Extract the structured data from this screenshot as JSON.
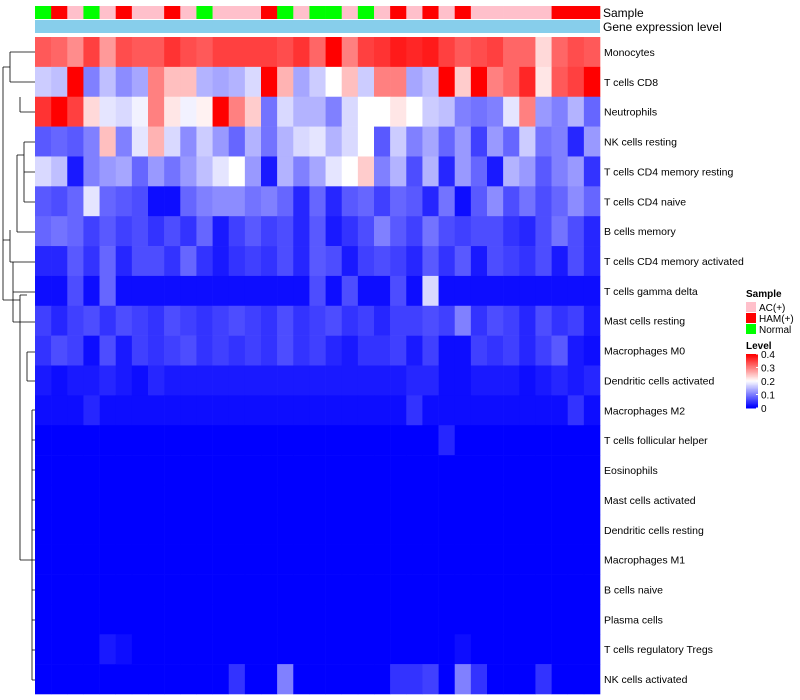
{
  "chart_data": {
    "type": "heatmap",
    "title": "",
    "annotation_tracks": [
      {
        "name": "Sample"
      },
      {
        "name": "Gene expression level"
      }
    ],
    "rows": [
      "Monocytes",
      "T cells CD8",
      "Neutrophils",
      "NK cells resting",
      "T cells CD4 memory resting",
      "T cells CD4 naive",
      "B cells memory",
      "T cells CD4 memory activated",
      "T cells gamma delta",
      "Mast cells resting",
      "Macrophages M0",
      "Dendritic cells activated",
      "Macrophages M2",
      "T cells follicular helper",
      "Eosinophils",
      "Mast cells activated",
      "Dendritic cells resting",
      "Macrophages M1",
      "B cells naive",
      "Plasma cells",
      "T cells regulatory  Tregs",
      "NK cells activated"
    ],
    "sample_groups": [
      "Normal",
      "HAM(+)",
      "AC(+)",
      "Normal",
      "AC(+)",
      "HAM(+)",
      "AC(+)",
      "AC(+)",
      "HAM(+)",
      "AC(+)",
      "Normal",
      "AC(+)",
      "AC(+)",
      "AC(+)",
      "HAM(+)",
      "Normal",
      "AC(+)",
      "Normal",
      "Normal",
      "AC(+)",
      "Normal",
      "AC(+)",
      "HAM(+)",
      "AC(+)",
      "HAM(+)",
      "AC(+)",
      "HAM(+)",
      "AC(+)",
      "AC(+)",
      "AC(+)",
      "AC(+)",
      "AC(+)",
      "HAM(+)",
      "HAM(+)",
      "HAM(+)"
    ],
    "values": [
      [
        0.33,
        0.32,
        0.29,
        0.35,
        0.28,
        0.34,
        0.33,
        0.33,
        0.36,
        0.34,
        0.33,
        0.35,
        0.35,
        0.35,
        0.35,
        0.34,
        0.36,
        0.32,
        0.4,
        0.3,
        0.35,
        0.36,
        0.38,
        0.37,
        0.38,
        0.35,
        0.33,
        0.34,
        0.35,
        0.32,
        0.32,
        0.23,
        0.32,
        0.34,
        0.33
      ],
      [
        0.16,
        0.15,
        0.4,
        0.1,
        0.15,
        0.11,
        0.13,
        0.3,
        0.25,
        0.25,
        0.14,
        0.13,
        0.14,
        0.17,
        0.4,
        0.26,
        0.13,
        0.16,
        0.2,
        0.25,
        0.16,
        0.3,
        0.3,
        0.13,
        0.15,
        0.4,
        0.24,
        0.4,
        0.3,
        0.32,
        0.37,
        0.22,
        0.33,
        0.35,
        0.4
      ],
      [
        0.36,
        0.4,
        0.35,
        0.23,
        0.18,
        0.17,
        0.19,
        0.3,
        0.22,
        0.19,
        0.21,
        0.4,
        0.3,
        0.24,
        0.09,
        0.17,
        0.14,
        0.14,
        0.1,
        0.17,
        0.2,
        0.2,
        0.22,
        0.2,
        0.16,
        0.15,
        0.1,
        0.09,
        0.1,
        0.18,
        0.3,
        0.12,
        0.1,
        0.14,
        0.08
      ],
      [
        0.07,
        0.08,
        0.07,
        0.1,
        0.25,
        0.1,
        0.18,
        0.26,
        0.17,
        0.11,
        0.16,
        0.12,
        0.08,
        0.14,
        0.09,
        0.14,
        0.17,
        0.18,
        0.14,
        0.17,
        0.2,
        0.07,
        0.16,
        0.1,
        0.13,
        0.08,
        0.12,
        0.05,
        0.12,
        0.08,
        0.16,
        0.09,
        0.1,
        0.03,
        0.12
      ],
      [
        0.17,
        0.15,
        0.02,
        0.1,
        0.12,
        0.13,
        0.08,
        0.12,
        0.09,
        0.12,
        0.15,
        0.18,
        0.2,
        0.12,
        0.02,
        0.14,
        0.1,
        0.13,
        0.18,
        0.2,
        0.24,
        0.1,
        0.14,
        0.06,
        0.14,
        0.03,
        0.12,
        0.08,
        0.02,
        0.14,
        0.12,
        0.07,
        0.1,
        0.12,
        0.04
      ],
      [
        0.07,
        0.06,
        0.08,
        0.18,
        0.08,
        0.07,
        0.06,
        0.01,
        0.01,
        0.08,
        0.1,
        0.11,
        0.11,
        0.09,
        0.1,
        0.08,
        0.03,
        0.08,
        0.03,
        0.07,
        0.08,
        0.05,
        0.08,
        0.07,
        0.03,
        0.09,
        0.01,
        0.07,
        0.11,
        0.06,
        0.09,
        0.06,
        0.08,
        0.11,
        0.08
      ],
      [
        0.08,
        0.09,
        0.08,
        0.05,
        0.07,
        0.05,
        0.06,
        0.04,
        0.06,
        0.04,
        0.08,
        0.02,
        0.05,
        0.07,
        0.05,
        0.06,
        0.03,
        0.07,
        0.02,
        0.04,
        0.06,
        0.1,
        0.07,
        0.05,
        0.09,
        0.06,
        0.05,
        0.06,
        0.06,
        0.04,
        0.03,
        0.06,
        0.09,
        0.06,
        0.03
      ],
      [
        0.03,
        0.03,
        0.07,
        0.04,
        0.08,
        0.03,
        0.06,
        0.06,
        0.04,
        0.08,
        0.04,
        0.02,
        0.04,
        0.05,
        0.04,
        0.06,
        0.03,
        0.07,
        0.06,
        0.02,
        0.05,
        0.06,
        0.05,
        0.03,
        0.07,
        0.04,
        0.07,
        0.02,
        0.06,
        0.05,
        0.04,
        0.06,
        0.02,
        0.06,
        0.03
      ],
      [
        0.01,
        0.01,
        0.06,
        0.01,
        0.08,
        0.01,
        0.01,
        0.01,
        0.01,
        0.01,
        0.01,
        0.01,
        0.01,
        0.01,
        0.01,
        0.01,
        0.01,
        0.06,
        0.01,
        0.06,
        0.01,
        0.01,
        0.06,
        0.01,
        0.17,
        0.01,
        0.01,
        0.01,
        0.01,
        0.01,
        0.01,
        0.01,
        0.01,
        0.01,
        0.01
      ],
      [
        0.05,
        0.03,
        0.05,
        0.06,
        0.04,
        0.06,
        0.05,
        0.04,
        0.06,
        0.05,
        0.04,
        0.05,
        0.06,
        0.05,
        0.04,
        0.06,
        0.04,
        0.05,
        0.06,
        0.04,
        0.05,
        0.03,
        0.05,
        0.05,
        0.06,
        0.05,
        0.1,
        0.04,
        0.06,
        0.05,
        0.03,
        0.06,
        0.04,
        0.05,
        0.02
      ],
      [
        0.04,
        0.06,
        0.05,
        0.01,
        0.06,
        0.02,
        0.05,
        0.04,
        0.05,
        0.06,
        0.04,
        0.05,
        0.04,
        0.05,
        0.04,
        0.06,
        0.04,
        0.05,
        0.03,
        0.02,
        0.04,
        0.04,
        0.05,
        0.02,
        0.05,
        0.01,
        0.01,
        0.05,
        0.04,
        0.05,
        0.03,
        0.05,
        0.07,
        0.02,
        0.01
      ],
      [
        0.02,
        0.01,
        0.02,
        0.02,
        0.03,
        0.02,
        0.01,
        0.03,
        0.02,
        0.02,
        0.02,
        0.02,
        0.02,
        0.02,
        0.02,
        0.02,
        0.02,
        0.02,
        0.02,
        0.02,
        0.02,
        0.02,
        0.02,
        0.03,
        0.03,
        0.01,
        0.01,
        0.02,
        0.02,
        0.02,
        0.01,
        0.02,
        0.03,
        0.02,
        0.03
      ],
      [
        0.01,
        0.01,
        0.01,
        0.03,
        0.01,
        0.01,
        0.01,
        0.01,
        0.01,
        0.01,
        0.01,
        0.01,
        0.01,
        0.01,
        0.01,
        0.01,
        0.01,
        0.01,
        0.01,
        0.01,
        0.01,
        0.01,
        0.01,
        0.04,
        0.01,
        0.01,
        0.01,
        0.01,
        0.01,
        0.01,
        0.01,
        0.01,
        0.01,
        0.04,
        0.01
      ],
      [
        0.0,
        0.0,
        0.0,
        0.0,
        0.0,
        0.0,
        0.0,
        0.0,
        0.0,
        0.0,
        0.0,
        0.0,
        0.0,
        0.0,
        0.0,
        0.0,
        0.0,
        0.0,
        0.0,
        0.0,
        0.0,
        0.0,
        0.0,
        0.0,
        0.0,
        0.03,
        0.0,
        0.0,
        0.0,
        0.0,
        0.0,
        0.0,
        0.0,
        0.0,
        0.0
      ],
      [
        0.0,
        0.0,
        0.0,
        0.0,
        0.0,
        0.0,
        0.0,
        0.0,
        0.0,
        0.0,
        0.0,
        0.0,
        0.0,
        0.0,
        0.0,
        0.0,
        0.0,
        0.0,
        0.0,
        0.0,
        0.0,
        0.0,
        0.0,
        0.0,
        0.0,
        0.0,
        0.0,
        0.0,
        0.0,
        0.0,
        0.0,
        0.0,
        0.0,
        0.0,
        0.0
      ],
      [
        0.0,
        0.0,
        0.0,
        0.0,
        0.0,
        0.0,
        0.0,
        0.0,
        0.0,
        0.0,
        0.0,
        0.0,
        0.0,
        0.0,
        0.0,
        0.0,
        0.0,
        0.0,
        0.0,
        0.0,
        0.0,
        0.0,
        0.0,
        0.0,
        0.0,
        0.0,
        0.0,
        0.0,
        0.0,
        0.0,
        0.0,
        0.0,
        0.0,
        0.0,
        0.0
      ],
      [
        0.0,
        0.0,
        0.0,
        0.0,
        0.0,
        0.0,
        0.0,
        0.0,
        0.0,
        0.0,
        0.0,
        0.0,
        0.0,
        0.0,
        0.0,
        0.0,
        0.0,
        0.0,
        0.0,
        0.0,
        0.0,
        0.0,
        0.0,
        0.0,
        0.0,
        0.0,
        0.0,
        0.0,
        0.0,
        0.0,
        0.0,
        0.0,
        0.0,
        0.0,
        0.0
      ],
      [
        0.0,
        0.0,
        0.0,
        0.0,
        0.0,
        0.0,
        0.0,
        0.0,
        0.0,
        0.0,
        0.0,
        0.0,
        0.0,
        0.0,
        0.0,
        0.0,
        0.0,
        0.0,
        0.0,
        0.0,
        0.0,
        0.0,
        0.0,
        0.0,
        0.0,
        0.0,
        0.0,
        0.0,
        0.0,
        0.0,
        0.0,
        0.0,
        0.0,
        0.0,
        0.0
      ],
      [
        0.0,
        0.0,
        0.0,
        0.0,
        0.0,
        0.0,
        0.0,
        0.0,
        0.0,
        0.0,
        0.0,
        0.0,
        0.0,
        0.0,
        0.0,
        0.0,
        0.0,
        0.0,
        0.0,
        0.0,
        0.0,
        0.0,
        0.0,
        0.0,
        0.0,
        0.0,
        0.0,
        0.0,
        0.0,
        0.0,
        0.0,
        0.0,
        0.0,
        0.0,
        0.0
      ],
      [
        0.0,
        0.0,
        0.0,
        0.0,
        0.0,
        0.0,
        0.0,
        0.0,
        0.0,
        0.0,
        0.0,
        0.0,
        0.0,
        0.0,
        0.0,
        0.0,
        0.0,
        0.0,
        0.0,
        0.0,
        0.0,
        0.0,
        0.0,
        0.0,
        0.0,
        0.0,
        0.0,
        0.0,
        0.0,
        0.0,
        0.0,
        0.0,
        0.0,
        0.0,
        0.0
      ],
      [
        0.0,
        0.0,
        0.0,
        0.0,
        0.02,
        0.01,
        0.0,
        0.0,
        0.0,
        0.0,
        0.0,
        0.0,
        0.0,
        0.0,
        0.0,
        0.0,
        0.0,
        0.0,
        0.0,
        0.0,
        0.0,
        0.0,
        0.0,
        0.0,
        0.0,
        0.0,
        0.01,
        0.0,
        0.0,
        0.0,
        0.0,
        0.0,
        0.0,
        0.0,
        0.0
      ],
      [
        0.0,
        0.0,
        0.0,
        0.0,
        0.0,
        0.0,
        0.0,
        0.0,
        0.0,
        0.0,
        0.0,
        0.0,
        0.04,
        0.0,
        0.0,
        0.1,
        0.0,
        0.0,
        0.0,
        0.0,
        0.0,
        0.0,
        0.04,
        0.04,
        0.05,
        0.0,
        0.1,
        0.04,
        0.0,
        0.0,
        0.0,
        0.04,
        0.0,
        0.0,
        0.0
      ]
    ],
    "legend": {
      "sample_title": "Sample",
      "groups": [
        {
          "label": "AC(+)",
          "color": "#ffc0cb"
        },
        {
          "label": "HAM(+)",
          "color": "#ff0000"
        },
        {
          "label": "Normal",
          "color": "#00ff00"
        }
      ],
      "level_title": "Level",
      "level_ticks": [
        "0.4",
        "0.3",
        "0.2",
        "0.1",
        "0"
      ],
      "level_range": [
        0,
        0.4
      ]
    },
    "colors": {
      "low": "#0000ff",
      "mid": "#ffffff",
      "high": "#ff0000",
      "expression_track": "#87ceeb"
    },
    "cluster_order_note": "rows ordered by hierarchical clustering dendrogram (left)"
  }
}
